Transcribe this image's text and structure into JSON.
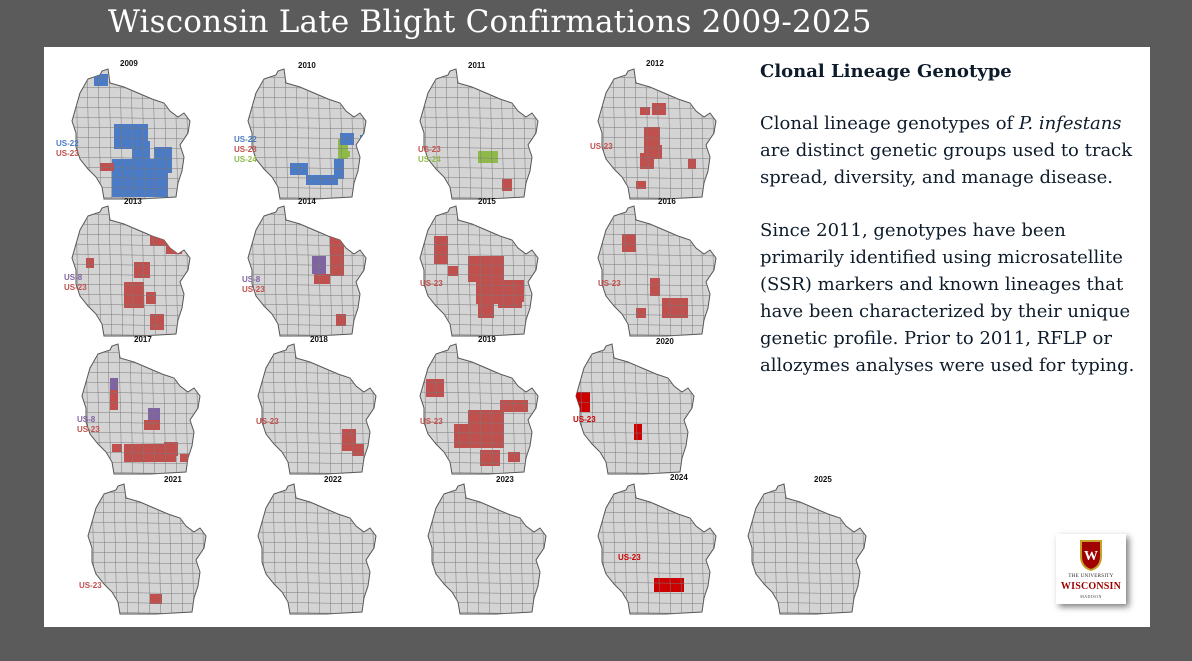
{
  "title": "Wisconsin Late Blight Confirmations 2009-2025",
  "sidebar": {
    "heading": "Clonal Lineage Genotype",
    "paragraph1_a": "Clonal lineage genotypes of ",
    "paragraph1_italic": "P. infestans",
    "paragraph1_b": " are distinct genetic groups used to track spread, diversity, and manage disease.",
    "paragraph2": "Since 2011, genotypes have been primarily identified using microsatellite (SSR) markers and known lineages that have been characterized by their unique genetic profile. Prior to 2011, RFLP or allozymes analyses were used for typing."
  },
  "colors": {
    "US-22": "#4a7bc4",
    "US-23": "#c0504d",
    "US-24": "#8fba4a",
    "US-8": "#8064a2",
    "US-23-2020": "#cc0000",
    "county": "#d4d4d4",
    "county_border": "#7a7a7a"
  },
  "maps": [
    {
      "year": "2009",
      "legend": [
        {
          "label": "US-22",
          "color": "#4a7bc4"
        },
        {
          "label": "US-23",
          "color": "#c0504d"
        }
      ]
    },
    {
      "year": "2010",
      "legend": [
        {
          "label": "US-22",
          "color": "#4a7bc4"
        },
        {
          "label": "US-23",
          "color": "#c0504d"
        },
        {
          "label": "US-24",
          "color": "#8fba4a"
        }
      ]
    },
    {
      "year": "2011",
      "legend": [
        {
          "label": "US-23",
          "color": "#c0504d"
        },
        {
          "label": "US-24",
          "color": "#8fba4a"
        }
      ]
    },
    {
      "year": "2012",
      "legend": [
        {
          "label": "US-23",
          "color": "#c0504d"
        }
      ]
    },
    {
      "year": "2013",
      "legend": [
        {
          "label": "US-8",
          "color": "#8064a2"
        },
        {
          "label": "US-23",
          "color": "#c0504d"
        }
      ]
    },
    {
      "year": "2014",
      "legend": [
        {
          "label": "US-8",
          "color": "#8064a2"
        },
        {
          "label": "US-23",
          "color": "#c0504d"
        }
      ]
    },
    {
      "year": "2015",
      "legend": [
        {
          "label": "US-23",
          "color": "#c0504d"
        }
      ]
    },
    {
      "year": "2016",
      "legend": [
        {
          "label": "US-23",
          "color": "#c0504d"
        }
      ]
    },
    {
      "year": "2017",
      "legend": [
        {
          "label": "US-8",
          "color": "#8064a2"
        },
        {
          "label": "US-23",
          "color": "#c0504d"
        }
      ]
    },
    {
      "year": "2018",
      "legend": [
        {
          "label": "US-23",
          "color": "#c0504d"
        }
      ]
    },
    {
      "year": "2019",
      "legend": [
        {
          "label": "US-23",
          "color": "#c0504d"
        }
      ]
    },
    {
      "year": "2020",
      "legend": [
        {
          "label": "US-23",
          "color": "#cc0000"
        }
      ]
    },
    {
      "year": "2021",
      "legend": [
        {
          "label": "US-23",
          "color": "#c0504d"
        }
      ]
    },
    {
      "year": "2022",
      "legend": []
    },
    {
      "year": "2023",
      "legend": []
    },
    {
      "year": "2024",
      "legend": [
        {
          "label": "US-23",
          "color": "#cc0000"
        }
      ]
    },
    {
      "year": "2025",
      "legend": []
    }
  ],
  "logo": {
    "line1": "THE UNIVERSITY",
    "line2": "WISCONSIN",
    "line3": "MADISON",
    "crest_letter": "W"
  }
}
